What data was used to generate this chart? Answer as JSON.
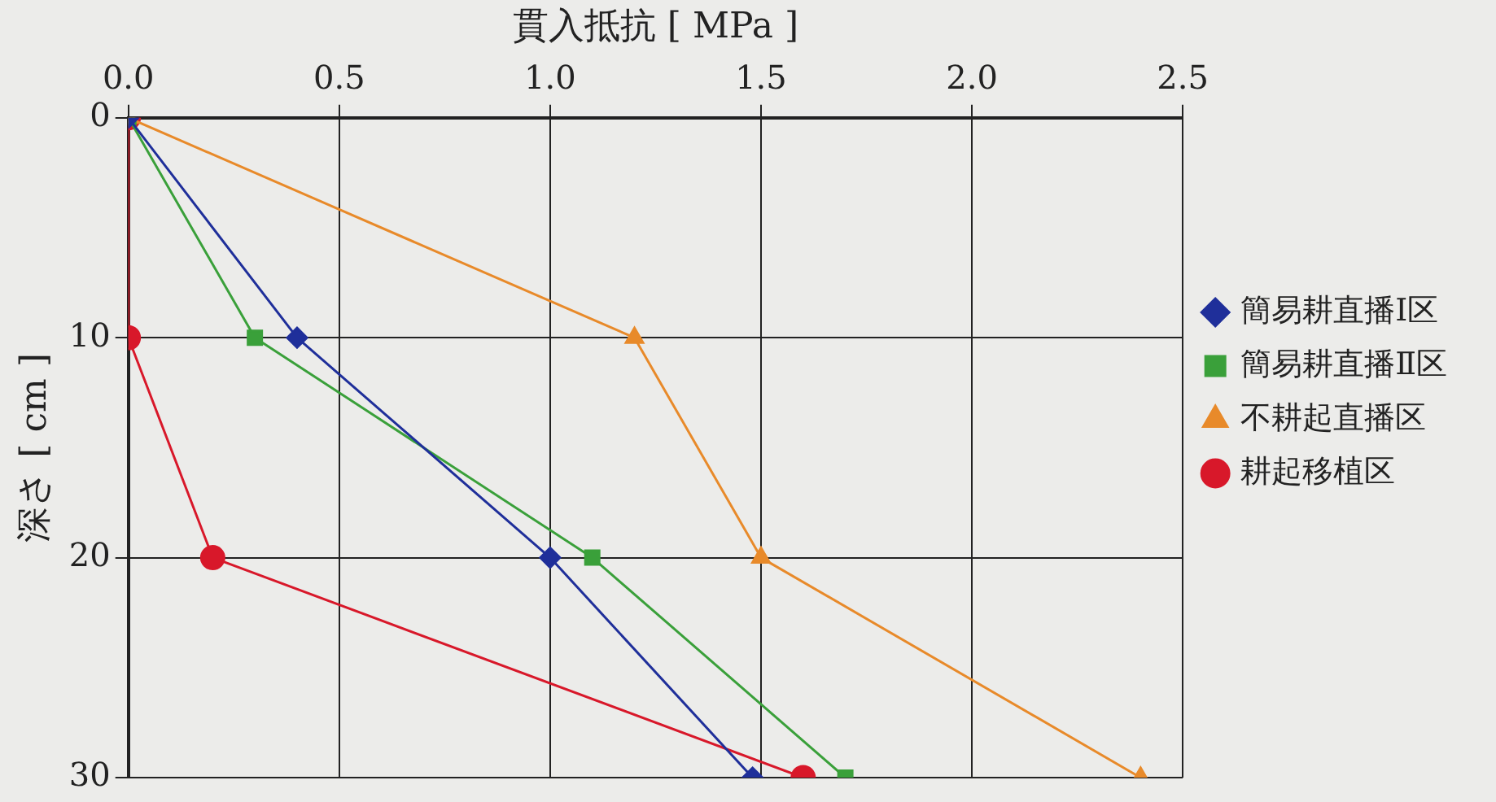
{
  "chart_data": {
    "type": "line",
    "xlabel": "貫入抵抗 [ MPa ]",
    "ylabel": "深さ [ cm ]",
    "xlim": [
      0,
      2.5
    ],
    "xticks": [
      {
        "value": 0,
        "label": "0.0"
      },
      {
        "value": 0.5,
        "label": "0.5"
      },
      {
        "value": 1,
        "label": "1.0"
      },
      {
        "value": 1.5,
        "label": "1.5"
      },
      {
        "value": 2,
        "label": "2.0"
      },
      {
        "value": 2.5,
        "label": "2.5"
      }
    ],
    "ylim": [
      30,
      0
    ],
    "yticks": [
      0,
      10,
      20,
      30
    ],
    "grid": true,
    "legend": "right",
    "series": [
      {
        "name": "簡易耕直播Ⅰ区",
        "color": "#1f2f9a",
        "marker": "diamond",
        "x": [
          0,
          0.4,
          1.0,
          1.48
        ],
        "values": [
          0,
          10,
          20,
          30
        ]
      },
      {
        "name": "簡易耕直播Ⅱ区",
        "color": "#3aa03a",
        "marker": "square",
        "x": [
          0,
          0.3,
          1.1,
          1.7
        ],
        "values": [
          0,
          10,
          20,
          30
        ]
      },
      {
        "name": "不耕起直播区",
        "color": "#e88a2a",
        "marker": "triangle",
        "x": [
          0,
          1.2,
          1.5,
          2.4
        ],
        "values": [
          0,
          10,
          20,
          30
        ]
      },
      {
        "name": "耕起移植区",
        "color": "#d8182a",
        "marker": "circle",
        "x": [
          0,
          0,
          0.2,
          1.6
        ],
        "values": [
          0,
          10,
          20,
          30
        ]
      }
    ]
  }
}
